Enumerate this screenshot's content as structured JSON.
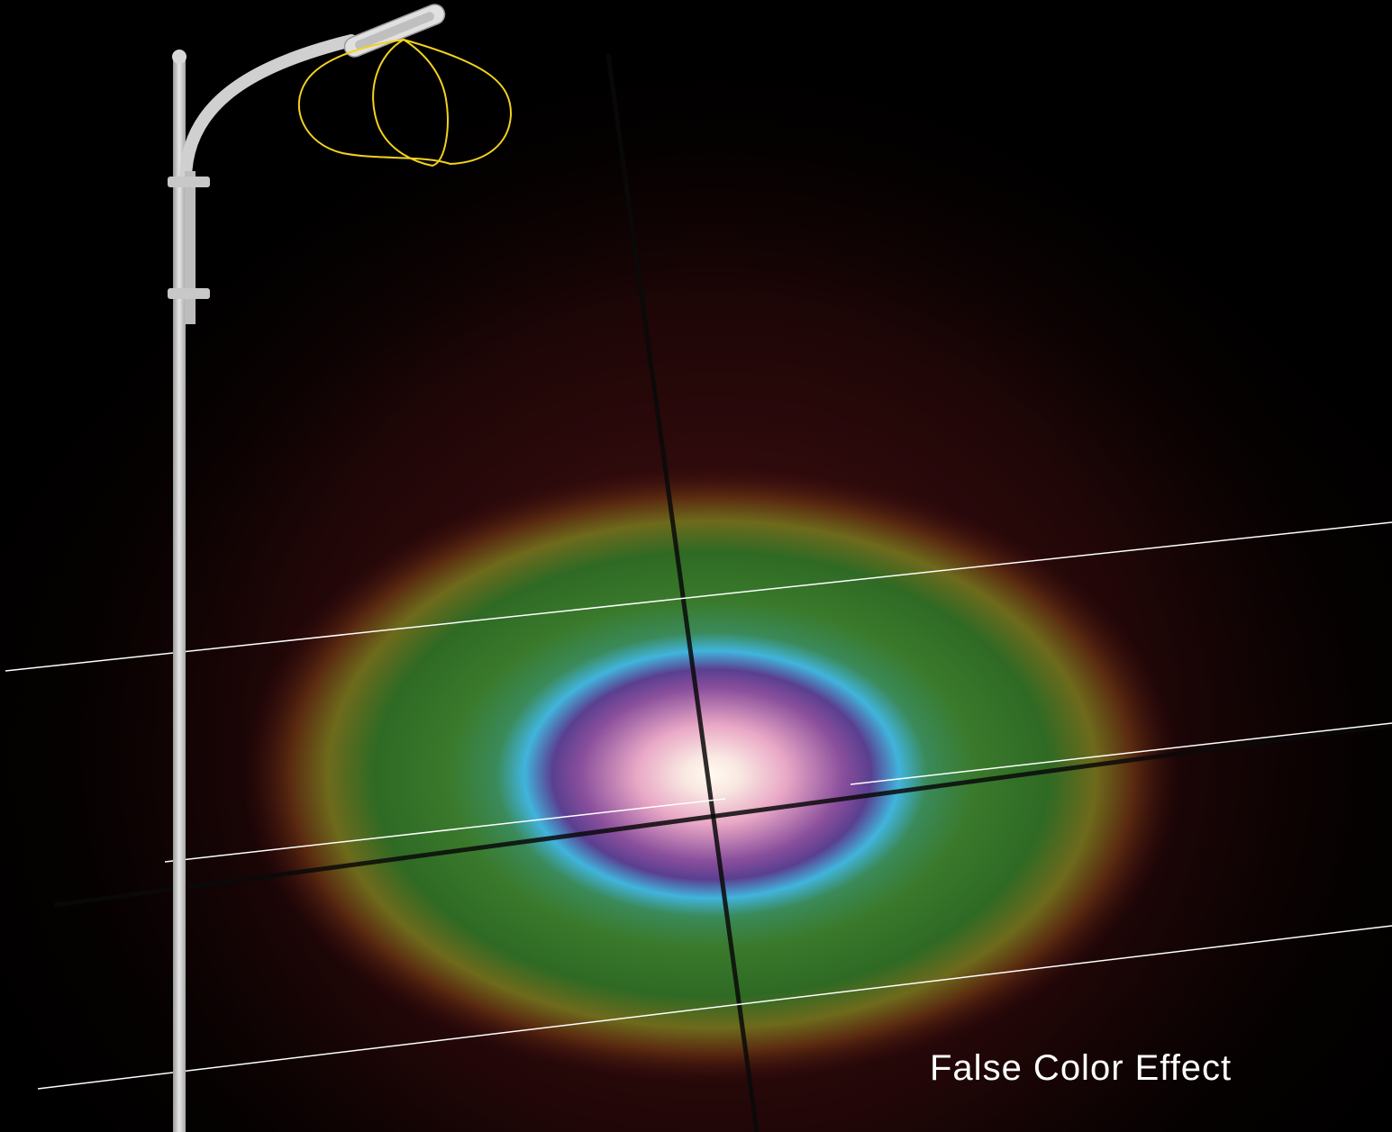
{
  "caption": "False Color Effect",
  "colors": {
    "background": "#000000",
    "glow_edge": "#3a0c0e",
    "falsecolor_outer_yellow": "#8a7a1e",
    "falsecolor_green": "#3c7a2a",
    "falsecolor_cyan": "#3fb3d8",
    "falsecolor_purple": "#6b3c8c",
    "falsecolor_pink": "#e8a6c4",
    "falsecolor_center": "#fff6e6",
    "photometric_curve": "#f2d21e",
    "pole": "#cfcfcf"
  },
  "icons": {
    "pole": "street-light-pole-icon",
    "curve": "light-distribution-curve-icon"
  }
}
